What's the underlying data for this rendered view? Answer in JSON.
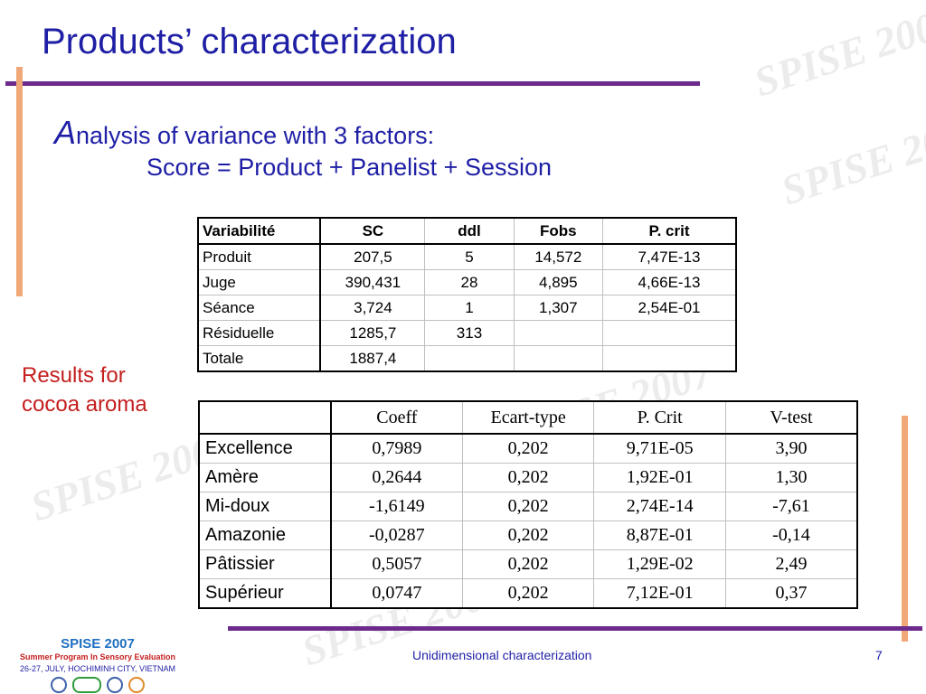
{
  "slide": {
    "title": "Products’ characterization",
    "subtitle_initial": "A",
    "subtitle_rest": "nalysis of variance with 3 factors:",
    "formula": "Score = Product + Panelist + Session",
    "side_note_line1": "Results for",
    "side_note_line2": "cocoa aroma"
  },
  "anova": {
    "headers": [
      "Variabilité",
      "SC",
      "ddl",
      "Fobs",
      "P. crit"
    ],
    "rows": [
      [
        "Produit",
        "207,5",
        "5",
        "14,572",
        "7,47E-13"
      ],
      [
        "Juge",
        "390,431",
        "28",
        "4,895",
        "4,66E-13"
      ],
      [
        "Séance",
        "3,724",
        "1",
        "1,307",
        "2,54E-01"
      ],
      [
        "Résiduelle",
        "1285,7",
        "313",
        "",
        ""
      ],
      [
        "Totale",
        "1887,4",
        "",
        "",
        ""
      ]
    ]
  },
  "results": {
    "headers": [
      "",
      "Coeff",
      "Ecart-type",
      "P. Crit",
      "V-test"
    ],
    "rows": [
      [
        "Excellence",
        "0,7989",
        "0,202",
        "9,71E-05",
        "3,90"
      ],
      [
        "Amère",
        "0,2644",
        "0,202",
        "1,92E-01",
        "1,30"
      ],
      [
        "Mi-doux",
        "-1,6149",
        "0,202",
        "2,74E-14",
        "-7,61"
      ],
      [
        "Amazonie",
        "-0,0287",
        "0,202",
        "8,87E-01",
        "-0,14"
      ],
      [
        "Pâtissier",
        "0,5057",
        "0,202",
        "1,29E-02",
        "2,49"
      ],
      [
        "Supérieur",
        "0,0747",
        "0,202",
        "7,12E-01",
        "0,37"
      ]
    ]
  },
  "logo": {
    "title": "SPISE 2007",
    "subtitle": "Summer Program In Sensory Evaluation",
    "location": "26-27, JULY, HOCHIMINH CITY, VIETNAM"
  },
  "footer": {
    "text": "Unidimensional characterization",
    "page": "7"
  },
  "colors": {
    "title": "#1f1fa6",
    "accent_purple": "#6b2a8c",
    "accent_orange": "#f0a878",
    "note_red": "#c41e1e"
  }
}
